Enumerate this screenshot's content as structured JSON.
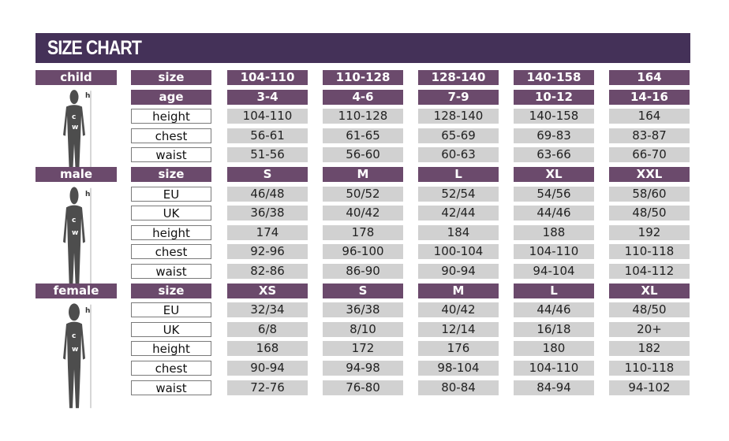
{
  "title": "SIZE CHART",
  "figure_labels": {
    "height": "h",
    "chest": "c",
    "waist": "w"
  },
  "colors": {
    "title_bg": "#443158",
    "header_bg": "#6b4a6c",
    "cell_bg": "#d1d1d1"
  },
  "sections": [
    {
      "label": "child",
      "rows": [
        {
          "label": "size",
          "header": true,
          "values": [
            "104-110",
            "110-128",
            "128-140",
            "140-158",
            "164"
          ]
        },
        {
          "label": "age",
          "header": true,
          "values": [
            "3-4",
            "4-6",
            "7-9",
            "10-12",
            "14-16"
          ]
        },
        {
          "label": "height",
          "values": [
            "104-110",
            "110-128",
            "128-140",
            "140-158",
            "164"
          ]
        },
        {
          "label": "chest",
          "values": [
            "56-61",
            "61-65",
            "65-69",
            "69-83",
            "83-87"
          ]
        },
        {
          "label": "waist",
          "values": [
            "51-56",
            "56-60",
            "60-63",
            "63-66",
            "66-70"
          ]
        }
      ]
    },
    {
      "label": "male",
      "rows": [
        {
          "label": "size",
          "header": true,
          "values": [
            "S",
            "M",
            "L",
            "XL",
            "XXL"
          ]
        },
        {
          "label": "EU",
          "values": [
            "46/48",
            "50/52",
            "52/54",
            "54/56",
            "58/60"
          ]
        },
        {
          "label": "UK",
          "values": [
            "36/38",
            "40/42",
            "42/44",
            "44/46",
            "48/50"
          ]
        },
        {
          "label": "height",
          "values": [
            "174",
            "178",
            "184",
            "188",
            "192"
          ]
        },
        {
          "label": "chest",
          "values": [
            "92-96",
            "96-100",
            "100-104",
            "104-110",
            "110-118"
          ]
        },
        {
          "label": "waist",
          "values": [
            "82-86",
            "86-90",
            "90-94",
            "94-104",
            "104-112"
          ]
        }
      ]
    },
    {
      "label": "female",
      "rows": [
        {
          "label": "size",
          "header": true,
          "values": [
            "XS",
            "S",
            "M",
            "L",
            "XL"
          ]
        },
        {
          "label": "EU",
          "values": [
            "32/34",
            "36/38",
            "40/42",
            "44/46",
            "48/50"
          ]
        },
        {
          "label": "UK",
          "values": [
            "6/8",
            "8/10",
            "12/14",
            "16/18",
            "20+"
          ]
        },
        {
          "label": "height",
          "values": [
            "168",
            "172",
            "176",
            "180",
            "182"
          ]
        },
        {
          "label": "chest",
          "values": [
            "90-94",
            "94-98",
            "98-104",
            "104-110",
            "110-118"
          ]
        },
        {
          "label": "waist",
          "values": [
            "72-76",
            "76-80",
            "80-84",
            "84-94",
            "94-102"
          ]
        }
      ]
    }
  ]
}
